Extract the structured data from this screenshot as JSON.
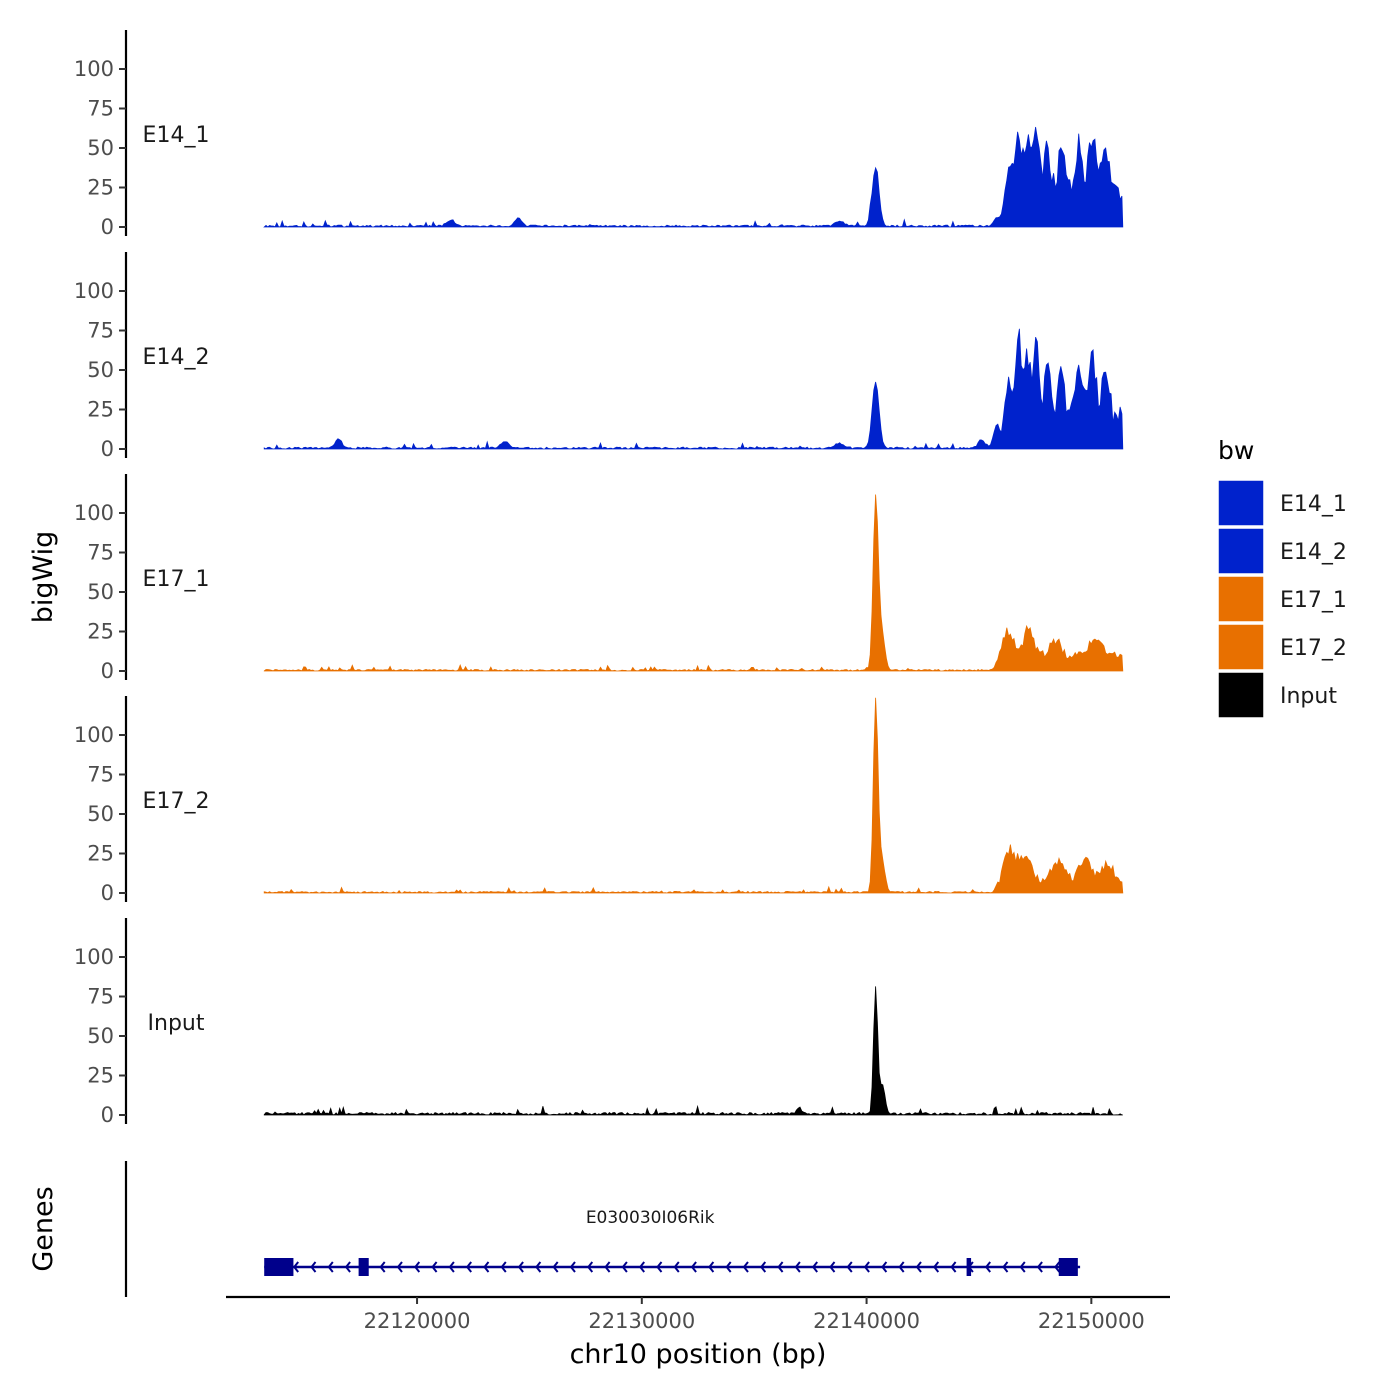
{
  "chart_data": {
    "type": "area",
    "xlabel": "chr10 position (bp)",
    "ylabel": "bigWig",
    "genes_panel_label": "Genes",
    "xlim": [
      22111500,
      22153500
    ],
    "x_ticks": [
      22120000,
      22130000,
      22140000,
      22150000
    ],
    "x_tick_labels": [
      "22120000",
      "22130000",
      "22140000",
      "22150000"
    ],
    "ylim": [
      0,
      125
    ],
    "y_ticks": [
      0,
      25,
      50,
      75,
      100
    ],
    "y_tick_labels": [
      "0",
      "25",
      "50",
      "75",
      "100"
    ],
    "region": [
      22113200,
      22151400
    ],
    "series": [
      {
        "name": "E14_1",
        "color": "#0022cc",
        "peaks": [
          [
            22121500,
            4,
            180
          ],
          [
            22124500,
            5,
            150
          ],
          [
            22138800,
            3,
            200
          ],
          [
            22140400,
            37,
            150
          ],
          [
            22145800,
            5,
            150
          ],
          [
            22146300,
            22,
            180
          ],
          [
            22146750,
            37,
            130
          ],
          [
            22147150,
            30,
            130
          ],
          [
            22147550,
            40,
            150
          ],
          [
            22148050,
            28,
            130
          ],
          [
            22148650,
            22,
            150
          ],
          [
            22149450,
            30,
            150
          ],
          [
            22150050,
            38,
            150
          ],
          [
            22150650,
            30,
            150
          ]
        ],
        "plateau": {
          "start": 22146000,
          "end": 22151400,
          "level": 22,
          "noise": 8
        },
        "noise": 1.2
      },
      {
        "name": "E14_2",
        "color": "#0022cc",
        "peaks": [
          [
            22116500,
            6,
            150
          ],
          [
            22123900,
            4,
            180
          ],
          [
            22138800,
            3,
            200
          ],
          [
            22140400,
            42,
            150
          ],
          [
            22145100,
            5,
            150
          ],
          [
            22145800,
            15,
            150
          ],
          [
            22146300,
            30,
            150
          ],
          [
            22146750,
            54,
            120
          ],
          [
            22147150,
            40,
            130
          ],
          [
            22147550,
            45,
            130
          ],
          [
            22148050,
            32,
            130
          ],
          [
            22148650,
            28,
            150
          ],
          [
            22149450,
            30,
            150
          ],
          [
            22150050,
            38,
            150
          ],
          [
            22150650,
            32,
            150
          ]
        ],
        "plateau": {
          "start": 22146000,
          "end": 22151400,
          "level": 20,
          "noise": 8
        },
        "noise": 1.2
      },
      {
        "name": "E17_1",
        "color": "#e87000",
        "peaks": [
          [
            22140400,
            105,
            110
          ],
          [
            22140650,
            25,
            150
          ],
          [
            22146300,
            15,
            250
          ],
          [
            22147200,
            18,
            200
          ],
          [
            22148400,
            10,
            250
          ],
          [
            22150200,
            12,
            250
          ]
        ],
        "plateau": {
          "start": 22145600,
          "end": 22151400,
          "level": 9,
          "noise": 3
        },
        "noise": 1.0
      },
      {
        "name": "E17_2",
        "color": "#e87000",
        "peaks": [
          [
            22140400,
            118,
            100
          ],
          [
            22140650,
            22,
            150
          ],
          [
            22146400,
            19,
            250
          ],
          [
            22147100,
            16,
            220
          ],
          [
            22148500,
            12,
            250
          ],
          [
            22149700,
            14,
            230
          ],
          [
            22150700,
            10,
            250
          ]
        ],
        "plateau": {
          "start": 22145600,
          "end": 22151400,
          "level": 8,
          "noise": 3
        },
        "noise": 1.0
      },
      {
        "name": "Input",
        "color": "#000000",
        "peaks": [
          [
            22140400,
            80,
            90
          ],
          [
            22140700,
            19,
            120
          ],
          [
            22137000,
            4,
            120
          ]
        ],
        "plateau": null,
        "noise": 1.6
      }
    ],
    "genes": [
      {
        "name": "E030030I06Rik",
        "start": 22113200,
        "end": 22149500,
        "strand": "-",
        "color": "#00008b",
        "exons": [
          [
            22113200,
            22114500
          ],
          [
            22117400,
            22117850
          ],
          [
            22144450,
            22144650
          ],
          [
            22148550,
            22149400
          ]
        ]
      }
    ],
    "legend": {
      "title": "bw",
      "placement": "right",
      "entries": [
        {
          "label": "E14_1",
          "color": "#0022cc"
        },
        {
          "label": "E14_2",
          "color": "#0022cc"
        },
        {
          "label": "E17_1",
          "color": "#e87000"
        },
        {
          "label": "E17_2",
          "color": "#e87000"
        },
        {
          "label": "Input",
          "color": "#000000"
        }
      ]
    }
  }
}
